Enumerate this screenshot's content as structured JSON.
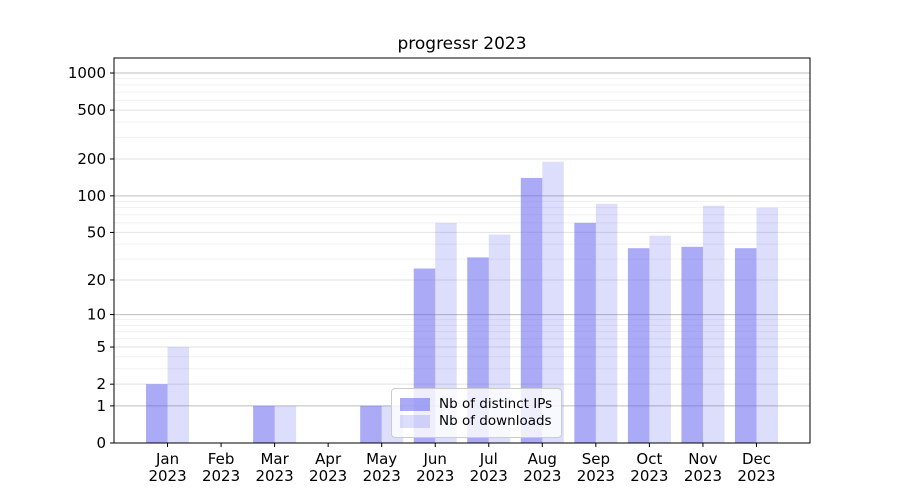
{
  "title": "progressr 2023",
  "legend": {
    "items": [
      {
        "label": "Nb of distinct IPs"
      },
      {
        "label": "Nb of downloads"
      }
    ]
  },
  "colors": {
    "bar_base": "#5555ee",
    "series_fills": [
      "rgba(85,85,238,0.5)",
      "rgba(85,85,238,0.2)"
    ],
    "grid_decade": "#bdbdbd",
    "grid_labeled": "#e2e2e2",
    "grid_minor": "#f1f1f1",
    "axis": "#000000"
  },
  "chart_data": {
    "type": "bar",
    "title": "progressr 2023",
    "xlabel": "",
    "ylabel": "",
    "scale": "log1p",
    "grid": true,
    "legend_position": "lower-center-inside",
    "categories": [
      "Jan",
      "Feb",
      "Mar",
      "Apr",
      "May",
      "Jun",
      "Jul",
      "Aug",
      "Sep",
      "Oct",
      "Nov",
      "Dec"
    ],
    "category_year": "2023",
    "series": [
      {
        "name": "Nb of distinct IPs",
        "values": [
          2,
          0,
          1,
          0,
          1,
          25,
          31,
          140,
          60,
          37,
          38,
          37
        ]
      },
      {
        "name": "Nb of downloads",
        "values": [
          5,
          0,
          1,
          0,
          1,
          60,
          48,
          190,
          86,
          47,
          83,
          80
        ]
      }
    ],
    "yticks": [
      0,
      1,
      2,
      5,
      10,
      20,
      50,
      100,
      200,
      500,
      1000
    ],
    "decade_ticks": [
      1,
      10,
      100,
      1000
    ],
    "minor_gridline_values": [
      3,
      4,
      6,
      7,
      8,
      9,
      30,
      40,
      60,
      70,
      80,
      90,
      300,
      400,
      600,
      700,
      800,
      900
    ],
    "ylim": [
      0,
      1320
    ]
  }
}
